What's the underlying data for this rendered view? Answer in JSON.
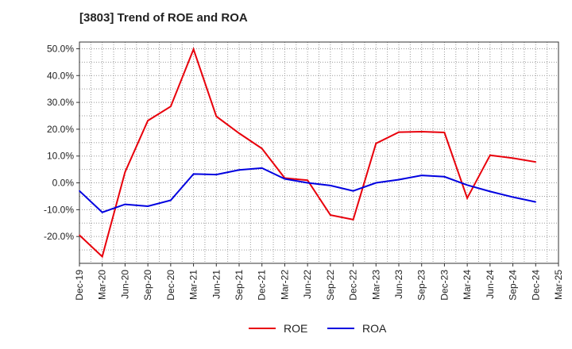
{
  "chart_data": {
    "type": "line",
    "title": "[3803]  Trend of ROE and ROA",
    "x": [
      "Dec-19",
      "Mar-20",
      "Jun-20",
      "Sep-20",
      "Dec-20",
      "Mar-21",
      "Jun-21",
      "Sep-21",
      "Dec-21",
      "Mar-22",
      "Jun-22",
      "Sep-22",
      "Dec-22",
      "Mar-23",
      "Jun-23",
      "Sep-23",
      "Dec-23",
      "Mar-24",
      "Jun-24",
      "Sep-24",
      "Dec-24",
      "Mar-25"
    ],
    "ylim": [
      -30,
      52.5
    ],
    "yticks": [
      -20,
      -10,
      0,
      10,
      20,
      30,
      40,
      50
    ],
    "ytick_labels": [
      "-20.0%",
      "-10.0%",
      "0.0%",
      "10.0%",
      "20.0%",
      "30.0%",
      "40.0%",
      "50.0%"
    ],
    "grid": true,
    "legend_position": "bottom-center",
    "series": [
      {
        "name": "ROE",
        "color": "#e8000b",
        "values": [
          -19.5,
          -27.5,
          4.0,
          23.2,
          28.5,
          49.8,
          24.8,
          18.5,
          12.8,
          1.8,
          1.0,
          -12.0,
          -13.7,
          14.7,
          18.9,
          19.1,
          18.8,
          -5.7,
          10.3,
          9.2,
          7.8,
          null
        ]
      },
      {
        "name": "ROA",
        "color": "#0000e0",
        "values": [
          -3.0,
          -11.0,
          -8.0,
          -8.7,
          -6.5,
          3.3,
          3.1,
          4.8,
          5.5,
          1.5,
          0.0,
          -1.0,
          -3.0,
          0.0,
          1.2,
          2.8,
          2.3,
          -0.8,
          -3.2,
          -5.3,
          -7.1,
          null
        ]
      }
    ]
  }
}
